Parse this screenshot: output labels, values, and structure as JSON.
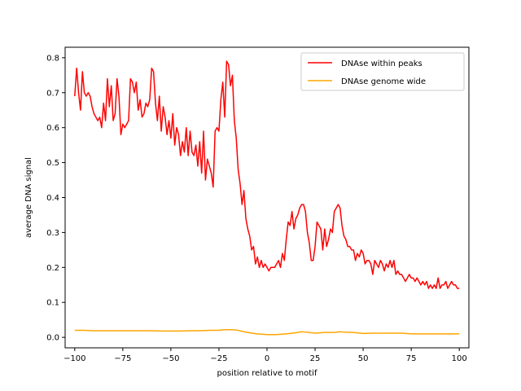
{
  "chart_data": {
    "type": "line",
    "title": "",
    "xlabel": "position relative to motif",
    "ylabel": "average DNA signal",
    "xlim": [
      -105,
      105
    ],
    "ylim": [
      -0.03,
      0.83
    ],
    "xticks": [
      -100,
      -75,
      -50,
      -25,
      0,
      25,
      50,
      75,
      100
    ],
    "yticks": [
      0.0,
      0.1,
      0.2,
      0.3,
      0.4,
      0.5,
      0.6,
      0.7,
      0.8
    ],
    "grid": false,
    "legend": "top-right",
    "series": [
      {
        "name": "DNAse within peaks",
        "color": "#ff0000",
        "points": [
          [
            -100,
            0.69
          ],
          [
            -99,
            0.77
          ],
          [
            -98,
            0.7
          ],
          [
            -97,
            0.65
          ],
          [
            -96,
            0.76
          ],
          [
            -95,
            0.7
          ],
          [
            -94,
            0.69
          ],
          [
            -93,
            0.7
          ],
          [
            -92,
            0.69
          ],
          [
            -91,
            0.66
          ],
          [
            -90,
            0.64
          ],
          [
            -89,
            0.63
          ],
          [
            -88,
            0.62
          ],
          [
            -87,
            0.63
          ],
          [
            -86,
            0.6
          ],
          [
            -85,
            0.67
          ],
          [
            -84,
            0.62
          ],
          [
            -83,
            0.74
          ],
          [
            -82,
            0.66
          ],
          [
            -81,
            0.72
          ],
          [
            -80,
            0.62
          ],
          [
            -79,
            0.64
          ],
          [
            -78,
            0.74
          ],
          [
            -77,
            0.69
          ],
          [
            -76,
            0.58
          ],
          [
            -75,
            0.61
          ],
          [
            -74,
            0.6
          ],
          [
            -73,
            0.61
          ],
          [
            -72,
            0.62
          ],
          [
            -71,
            0.74
          ],
          [
            -70,
            0.73
          ],
          [
            -69,
            0.7
          ],
          [
            -68,
            0.73
          ],
          [
            -67,
            0.65
          ],
          [
            -66,
            0.68
          ],
          [
            -65,
            0.63
          ],
          [
            -64,
            0.64
          ],
          [
            -63,
            0.67
          ],
          [
            -62,
            0.66
          ],
          [
            -61,
            0.68
          ],
          [
            -60,
            0.77
          ],
          [
            -59,
            0.76
          ],
          [
            -58,
            0.67
          ],
          [
            -57,
            0.62
          ],
          [
            -56,
            0.69
          ],
          [
            -55,
            0.59
          ],
          [
            -54,
            0.66
          ],
          [
            -53,
            0.63
          ],
          [
            -52,
            0.58
          ],
          [
            -51,
            0.62
          ],
          [
            -50,
            0.57
          ],
          [
            -49,
            0.64
          ],
          [
            -48,
            0.55
          ],
          [
            -47,
            0.6
          ],
          [
            -46,
            0.58
          ],
          [
            -45,
            0.52
          ],
          [
            -44,
            0.56
          ],
          [
            -43,
            0.53
          ],
          [
            -42,
            0.6
          ],
          [
            -41,
            0.52
          ],
          [
            -40,
            0.59
          ],
          [
            -39,
            0.53
          ],
          [
            -38,
            0.52
          ],
          [
            -37,
            0.55
          ],
          [
            -36,
            0.49
          ],
          [
            -35,
            0.56
          ],
          [
            -34,
            0.47
          ],
          [
            -33,
            0.59
          ],
          [
            -32,
            0.45
          ],
          [
            -31,
            0.51
          ],
          [
            -30,
            0.49
          ],
          [
            -29,
            0.47
          ],
          [
            -28,
            0.43
          ],
          [
            -27,
            0.59
          ],
          [
            -26,
            0.6
          ],
          [
            -25,
            0.59
          ],
          [
            -24,
            0.68
          ],
          [
            -23,
            0.73
          ],
          [
            -22,
            0.63
          ],
          [
            -21,
            0.79
          ],
          [
            -20,
            0.78
          ],
          [
            -19,
            0.72
          ],
          [
            -18,
            0.75
          ],
          [
            -17,
            0.62
          ],
          [
            -16,
            0.57
          ],
          [
            -15,
            0.48
          ],
          [
            -14,
            0.44
          ],
          [
            -13,
            0.38
          ],
          [
            -12,
            0.42
          ],
          [
            -11,
            0.34
          ],
          [
            -10,
            0.31
          ],
          [
            -9,
            0.29
          ],
          [
            -8,
            0.25
          ],
          [
            -7,
            0.26
          ],
          [
            -6,
            0.21
          ],
          [
            -5,
            0.23
          ],
          [
            -4,
            0.2
          ],
          [
            -3,
            0.22
          ],
          [
            -2,
            0.2
          ],
          [
            -1,
            0.21
          ],
          [
            0,
            0.2
          ],
          [
            1,
            0.19
          ],
          [
            2,
            0.2
          ],
          [
            3,
            0.2
          ],
          [
            4,
            0.2
          ],
          [
            5,
            0.21
          ],
          [
            6,
            0.22
          ],
          [
            7,
            0.2
          ],
          [
            8,
            0.24
          ],
          [
            9,
            0.22
          ],
          [
            10,
            0.28
          ],
          [
            11,
            0.33
          ],
          [
            12,
            0.32
          ],
          [
            13,
            0.36
          ],
          [
            14,
            0.31
          ],
          [
            15,
            0.34
          ],
          [
            16,
            0.35
          ],
          [
            17,
            0.37
          ],
          [
            18,
            0.38
          ],
          [
            19,
            0.38
          ],
          [
            20,
            0.36
          ],
          [
            21,
            0.3
          ],
          [
            22,
            0.27
          ],
          [
            23,
            0.22
          ],
          [
            24,
            0.22
          ],
          [
            25,
            0.26
          ],
          [
            26,
            0.33
          ],
          [
            27,
            0.32
          ],
          [
            28,
            0.31
          ],
          [
            29,
            0.25
          ],
          [
            30,
            0.31
          ],
          [
            31,
            0.26
          ],
          [
            32,
            0.28
          ],
          [
            33,
            0.31
          ],
          [
            34,
            0.3
          ],
          [
            35,
            0.36
          ],
          [
            36,
            0.37
          ],
          [
            37,
            0.38
          ],
          [
            38,
            0.37
          ],
          [
            39,
            0.32
          ],
          [
            40,
            0.29
          ],
          [
            41,
            0.28
          ],
          [
            42,
            0.26
          ],
          [
            43,
            0.26
          ],
          [
            44,
            0.25
          ],
          [
            45,
            0.25
          ],
          [
            46,
            0.22
          ],
          [
            47,
            0.24
          ],
          [
            48,
            0.23
          ],
          [
            49,
            0.25
          ],
          [
            50,
            0.24
          ],
          [
            51,
            0.21
          ],
          [
            52,
            0.22
          ],
          [
            53,
            0.22
          ],
          [
            54,
            0.21
          ],
          [
            55,
            0.18
          ],
          [
            56,
            0.22
          ],
          [
            57,
            0.21
          ],
          [
            58,
            0.2
          ],
          [
            59,
            0.22
          ],
          [
            60,
            0.21
          ],
          [
            61,
            0.19
          ],
          [
            62,
            0.21
          ],
          [
            63,
            0.2
          ],
          [
            64,
            0.22
          ],
          [
            65,
            0.2
          ],
          [
            66,
            0.22
          ],
          [
            67,
            0.18
          ],
          [
            68,
            0.19
          ],
          [
            69,
            0.18
          ],
          [
            70,
            0.18
          ],
          [
            71,
            0.17
          ],
          [
            72,
            0.16
          ],
          [
            73,
            0.17
          ],
          [
            74,
            0.18
          ],
          [
            75,
            0.17
          ],
          [
            76,
            0.17
          ],
          [
            77,
            0.16
          ],
          [
            78,
            0.17
          ],
          [
            79,
            0.16
          ],
          [
            80,
            0.15
          ],
          [
            81,
            0.16
          ],
          [
            82,
            0.15
          ],
          [
            83,
            0.16
          ],
          [
            84,
            0.14
          ],
          [
            85,
            0.15
          ],
          [
            86,
            0.14
          ],
          [
            87,
            0.15
          ],
          [
            88,
            0.14
          ],
          [
            89,
            0.17
          ],
          [
            90,
            0.14
          ],
          [
            91,
            0.15
          ],
          [
            92,
            0.15
          ],
          [
            93,
            0.16
          ],
          [
            94,
            0.14
          ],
          [
            95,
            0.15
          ],
          [
            96,
            0.16
          ],
          [
            97,
            0.15
          ],
          [
            98,
            0.15
          ],
          [
            99,
            0.14
          ],
          [
            100,
            0.14
          ]
        ]
      },
      {
        "name": "DNAse genome wide",
        "color": "#ffa500",
        "points": [
          [
            -100,
            0.02
          ],
          [
            -95,
            0.02
          ],
          [
            -90,
            0.019
          ],
          [
            -85,
            0.019
          ],
          [
            -80,
            0.019
          ],
          [
            -75,
            0.019
          ],
          [
            -70,
            0.019
          ],
          [
            -65,
            0.019
          ],
          [
            -60,
            0.019
          ],
          [
            -55,
            0.018
          ],
          [
            -50,
            0.018
          ],
          [
            -45,
            0.018
          ],
          [
            -40,
            0.019
          ],
          [
            -35,
            0.019
          ],
          [
            -30,
            0.02
          ],
          [
            -25,
            0.02
          ],
          [
            -22,
            0.022
          ],
          [
            -18,
            0.022
          ],
          [
            -15,
            0.02
          ],
          [
            -12,
            0.016
          ],
          [
            -8,
            0.012
          ],
          [
            -5,
            0.01
          ],
          [
            0,
            0.008
          ],
          [
            5,
            0.008
          ],
          [
            10,
            0.01
          ],
          [
            15,
            0.013
          ],
          [
            18,
            0.016
          ],
          [
            20,
            0.015
          ],
          [
            25,
            0.012
          ],
          [
            30,
            0.014
          ],
          [
            35,
            0.014
          ],
          [
            38,
            0.016
          ],
          [
            40,
            0.015
          ],
          [
            45,
            0.014
          ],
          [
            50,
            0.011
          ],
          [
            55,
            0.012
          ],
          [
            60,
            0.012
          ],
          [
            65,
            0.012
          ],
          [
            70,
            0.012
          ],
          [
            75,
            0.01
          ],
          [
            80,
            0.01
          ],
          [
            85,
            0.01
          ],
          [
            90,
            0.01
          ],
          [
            95,
            0.01
          ],
          [
            100,
            0.01
          ]
        ]
      }
    ]
  }
}
